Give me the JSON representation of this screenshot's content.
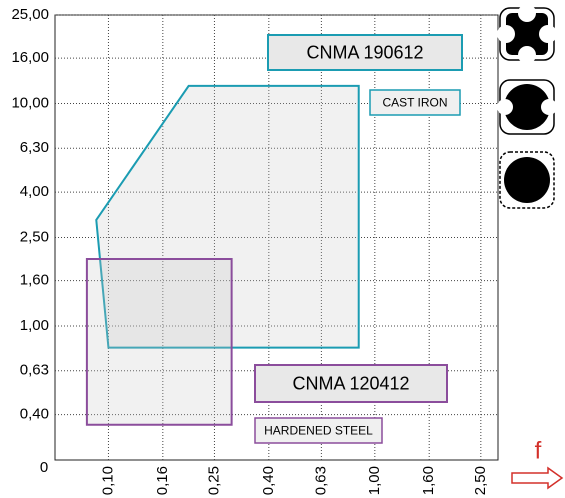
{
  "chart_data": {
    "type": "polygon",
    "origin_label": "0",
    "x_marker": "f",
    "xscale": "log",
    "yscale": "log",
    "grid": true,
    "xlim": [
      0.063,
      2.9
    ],
    "ylim": [
      0.25,
      25
    ],
    "xticks": [
      {
        "value": 0.1,
        "label": "0,10"
      },
      {
        "value": 0.16,
        "label": "0,16"
      },
      {
        "value": 0.25,
        "label": "0,25"
      },
      {
        "value": 0.4,
        "label": "0,40"
      },
      {
        "value": 0.63,
        "label": "0,63"
      },
      {
        "value": 1,
        "label": "1,00"
      },
      {
        "value": 1.6,
        "label": "1,60"
      },
      {
        "value": 2.5,
        "label": "2,50"
      }
    ],
    "yticks": [
      {
        "value": 0.4,
        "label": "0,40"
      },
      {
        "value": 0.63,
        "label": "0,63"
      },
      {
        "value": 1,
        "label": "1,00"
      },
      {
        "value": 1.6,
        "label": "1,60"
      },
      {
        "value": 2.5,
        "label": "2,50"
      },
      {
        "value": 4,
        "label": "4,00"
      },
      {
        "value": 6.3,
        "label": "6,30"
      },
      {
        "value": 10,
        "label": "10,00"
      },
      {
        "value": 16,
        "label": "16,00"
      },
      {
        "value": 25,
        "label": "25,00"
      }
    ],
    "series": [
      {
        "name": "CNMA 190612",
        "material": "CAST IRON",
        "color": "#1b9cb2",
        "x": [
          0.09,
          0.2,
          0.87,
          0.87,
          0.1
        ],
        "y": [
          3,
          12,
          12,
          0.8,
          0.8
        ]
      },
      {
        "name": "CNMA 120412",
        "material": "HARDENED STEEL",
        "color": "#8b4d9c",
        "x": [
          0.083,
          0.29,
          0.29,
          0.083
        ],
        "y": [
          0.36,
          0.36,
          2,
          2
        ]
      }
    ]
  }
}
